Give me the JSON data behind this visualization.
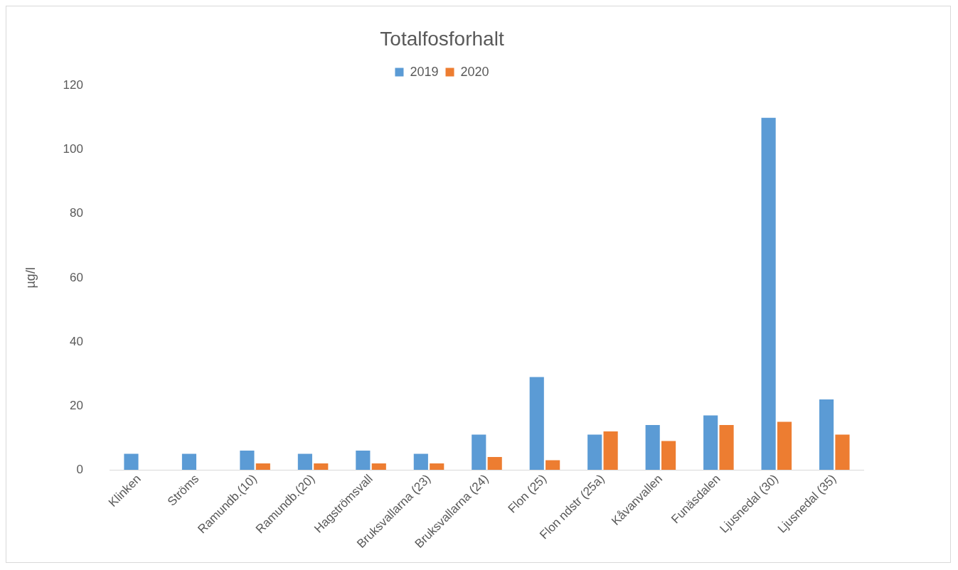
{
  "chart_data": {
    "type": "bar",
    "title": "Totalfosforhalt",
    "ylabel": "µg/l",
    "categories": [
      "Klinken",
      "Ströms",
      "Ramundb.(10)",
      "Ramundb.(20)",
      "Hagströmsvall",
      "Bruksvallarna (23)",
      "Bruksvallarna (24)",
      "Flon (25)",
      "Flon ndstr (25a)",
      "Kåvanvallen",
      "Funäsdalen",
      "Ljusnedal (30)",
      "Ljusnedal (35)"
    ],
    "series": [
      {
        "name": "2019",
        "color": "#5b9bd5",
        "values": [
          5,
          5,
          6,
          5,
          6,
          5,
          11,
          29,
          11,
          14,
          17,
          110,
          22
        ]
      },
      {
        "name": "2020",
        "color": "#ed7d31",
        "values": [
          null,
          null,
          2,
          2,
          2,
          2,
          4,
          3,
          12,
          9,
          14,
          15,
          11
        ]
      }
    ],
    "ylim": [
      0,
      120
    ],
    "yticks": [
      0,
      20,
      40,
      60,
      80,
      100,
      120
    ],
    "grid": false,
    "legend": "top"
  }
}
